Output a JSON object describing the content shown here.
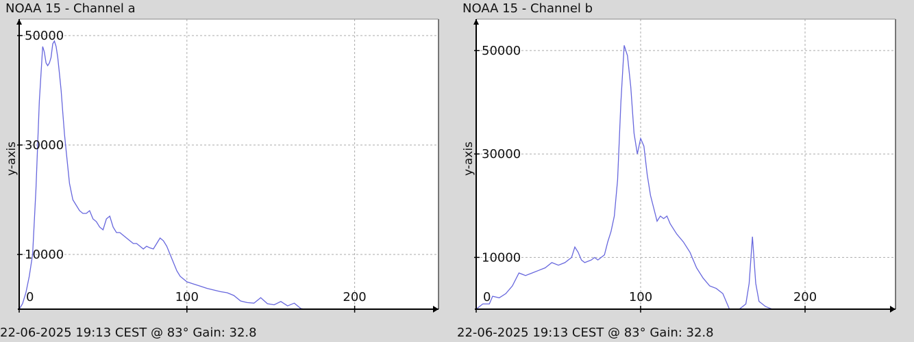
{
  "chart_data": [
    {
      "type": "line",
      "title": "NOAA 15 - Channel a",
      "ylabel": "y-axis",
      "xlabel": "",
      "footer": "22-06-2025 19:13 CEST @ 83° Gain: 32.8",
      "xlim": [
        0,
        250
      ],
      "ylim": [
        0,
        52000
      ],
      "xticks": [
        0,
        100,
        200
      ],
      "yticks": [
        10000,
        30000,
        50000
      ],
      "xtick_labels": [
        "0",
        "100",
        "200"
      ],
      "ytick_labels": [
        "10000",
        "30000",
        "50000"
      ],
      "grid": true,
      "series_color": "#6666dd",
      "series": [
        {
          "x": [
            0,
            2,
            4,
            6,
            8,
            10,
            12,
            14,
            15,
            16,
            17,
            18,
            19,
            20,
            21,
            22,
            23,
            24,
            25,
            26,
            27,
            28,
            30,
            32,
            34,
            36,
            38,
            40,
            42,
            44,
            46,
            48,
            50,
            52,
            54,
            56,
            58,
            60,
            62,
            64,
            66,
            68,
            70,
            72,
            74,
            76,
            78,
            80,
            82,
            84,
            86,
            88,
            90,
            92,
            94,
            96,
            98,
            100,
            104,
            108,
            112,
            116,
            120,
            124,
            128,
            132,
            136,
            140,
            144,
            148,
            152,
            156,
            160,
            164,
            168,
            170
          ],
          "y": [
            0,
            1000,
            3000,
            6000,
            10000,
            22000,
            38000,
            48000,
            47000,
            45000,
            44500,
            45000,
            46000,
            48500,
            49000,
            48000,
            46000,
            43000,
            40000,
            36000,
            32000,
            29000,
            23000,
            20000,
            19000,
            18000,
            17500,
            17500,
            18000,
            16500,
            16000,
            15000,
            14500,
            16500,
            17000,
            15000,
            14000,
            14000,
            13500,
            13000,
            12500,
            12000,
            12000,
            11500,
            11000,
            11500,
            11200,
            11000,
            12000,
            13000,
            12500,
            11500,
            10000,
            8500,
            7000,
            6000,
            5500,
            5000,
            4600,
            4200,
            3800,
            3500,
            3200,
            3000,
            2500,
            1500,
            1200,
            1100,
            2100,
            1000,
            800,
            1400,
            600,
            1100,
            100,
            0
          ]
        }
      ]
    },
    {
      "type": "line",
      "title": "NOAA 15 - Channel b",
      "ylabel": "y-axis",
      "xlabel": "",
      "footer": "22-06-2025 19:13 CEST @ 83° Gain: 32.8",
      "xlim": [
        0,
        255
      ],
      "ylim": [
        0,
        55000
      ],
      "xticks": [
        0,
        100,
        200
      ],
      "yticks": [
        10000,
        30000,
        50000
      ],
      "xtick_labels": [
        "0",
        "100",
        "200"
      ],
      "ytick_labels": [
        "10000",
        "30000",
        "50000"
      ],
      "grid": true,
      "series_color": "#6666dd",
      "series": [
        {
          "x": [
            0,
            4,
            8,
            10,
            14,
            18,
            22,
            26,
            30,
            34,
            38,
            42,
            46,
            50,
            54,
            58,
            60,
            62,
            64,
            66,
            70,
            72,
            74,
            76,
            78,
            80,
            82,
            84,
            86,
            88,
            90,
            92,
            94,
            96,
            98,
            100,
            102,
            104,
            106,
            108,
            110,
            112,
            114,
            116,
            118,
            120,
            122,
            126,
            130,
            134,
            138,
            142,
            146,
            150,
            154,
            158,
            160,
            162,
            164,
            166,
            168,
            170,
            172,
            174,
            176,
            180,
            185
          ],
          "y": [
            0,
            1000,
            1000,
            2500,
            2200,
            3000,
            4500,
            7000,
            6500,
            7000,
            7500,
            8000,
            9000,
            8500,
            9000,
            10000,
            12000,
            11000,
            9500,
            9000,
            9500,
            10000,
            9500,
            10000,
            10500,
            13000,
            15000,
            18000,
            25000,
            40000,
            51000,
            49000,
            43000,
            34000,
            30000,
            33000,
            31500,
            26000,
            22000,
            19500,
            17000,
            18000,
            17500,
            18000,
            16500,
            15500,
            14500,
            13000,
            11000,
            8000,
            6000,
            4500,
            4000,
            3000,
            0,
            0,
            0,
            500,
            1000,
            5000,
            14000,
            5000,
            1500,
            1000,
            500,
            0,
            0
          ]
        }
      ]
    }
  ]
}
